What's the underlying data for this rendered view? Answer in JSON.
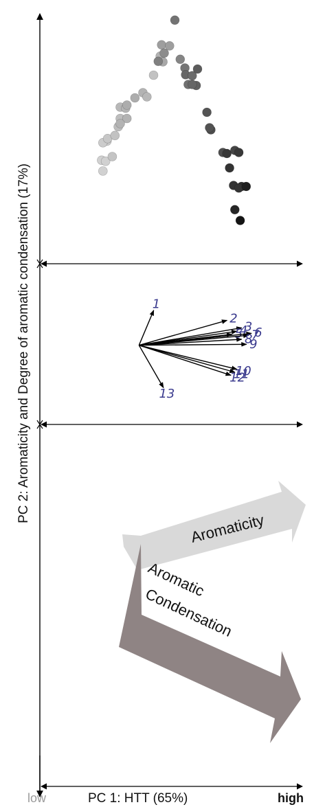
{
  "labels": {
    "y_axis": "PC 2: Aromaticity and Degree of aromatic condensation (17%)",
    "x_axis": "PC 1: HTT (65%)",
    "x_low": "low",
    "x_high": "high",
    "arrow_aromaticity": "Aromaticity",
    "arrow_condensation_line1": "Aromatic",
    "arrow_condensation_line2": "Condensation"
  },
  "colors": {
    "axis": "#000000",
    "loading_label": "#3b3b8e",
    "aromaticity_arrow": "#d9d9d9",
    "condensation_arrow": "#8f8484",
    "low_label": "#9a9a9a"
  },
  "chart_data": [
    {
      "type": "scatter",
      "title": "",
      "note": "score plot; point shade darkens with increasing HTT",
      "points": [
        {
          "x": -0.78,
          "y": 0.04,
          "shade": 0.82
        },
        {
          "x": -0.8,
          "y": 0.25,
          "shade": 0.82
        },
        {
          "x": -0.74,
          "y": 0.23,
          "shade": 0.82
        },
        {
          "x": -0.72,
          "y": 0.62,
          "shade": 0.8
        },
        {
          "x": -0.78,
          "y": 0.59,
          "shade": 0.8
        },
        {
          "x": -0.71,
          "y": 0.67,
          "shade": 0.78
        },
        {
          "x": -0.64,
          "y": 0.32,
          "shade": 0.77
        },
        {
          "x": -0.6,
          "y": 0.73,
          "shade": 0.76
        },
        {
          "x": -0.55,
          "y": 0.9,
          "shade": 0.74
        },
        {
          "x": -0.52,
          "y": 1.06,
          "shade": 0.74
        },
        {
          "x": -0.52,
          "y": 1.28,
          "shade": 0.72
        },
        {
          "x": -0.42,
          "y": 1.06,
          "shade": 0.7
        },
        {
          "x": -0.44,
          "y": 1.26,
          "shade": 0.71
        },
        {
          "x": -0.52,
          "y": 0.96,
          "shade": 0.7
        },
        {
          "x": -0.42,
          "y": 1.32,
          "shade": 0.68
        },
        {
          "x": -0.3,
          "y": 1.46,
          "shade": 0.68
        },
        {
          "x": -0.18,
          "y": 1.56,
          "shade": 0.7
        },
        {
          "x": -0.12,
          "y": 1.48,
          "shade": 0.72
        },
        {
          "x": -0.02,
          "y": 1.9,
          "shade": 0.76
        },
        {
          "x": 0.08,
          "y": 2.27,
          "shade": 0.7
        },
        {
          "x": 0.12,
          "y": 2.16,
          "shade": 0.66
        },
        {
          "x": 0.1,
          "y": 2.49,
          "shade": 0.62
        },
        {
          "x": 0.22,
          "y": 2.47,
          "shade": 0.62
        },
        {
          "x": 0.14,
          "y": 2.33,
          "shade": 0.55
        },
        {
          "x": 0.05,
          "y": 2.17,
          "shade": 0.5
        },
        {
          "x": 0.3,
          "y": 2.97,
          "shade": 0.45
        },
        {
          "x": 0.38,
          "y": 2.21,
          "shade": 0.52
        },
        {
          "x": 0.45,
          "y": 2.04,
          "shade": 0.46
        },
        {
          "x": 0.5,
          "y": 1.72,
          "shade": 0.44
        },
        {
          "x": 0.46,
          "y": 1.91,
          "shade": 0.4
        },
        {
          "x": 0.56,
          "y": 1.89,
          "shade": 0.42
        },
        {
          "x": 0.62,
          "y": 1.7,
          "shade": 0.38
        },
        {
          "x": 0.56,
          "y": 1.72,
          "shade": 0.4
        },
        {
          "x": 0.64,
          "y": 2.02,
          "shade": 0.36
        },
        {
          "x": 0.78,
          "y": 1.18,
          "shade": 0.33
        },
        {
          "x": 0.84,
          "y": 0.84,
          "shade": 0.3
        },
        {
          "x": 0.82,
          "y": 0.88,
          "shade": 0.32
        },
        {
          "x": 1.02,
          "y": 0.4,
          "shade": 0.3
        },
        {
          "x": 1.08,
          "y": 0.38,
          "shade": 0.22
        },
        {
          "x": 1.2,
          "y": 0.44,
          "shade": 0.27
        },
        {
          "x": 1.26,
          "y": 0.4,
          "shade": 0.22
        },
        {
          "x": 1.12,
          "y": 0.1,
          "shade": 0.2
        },
        {
          "x": 1.18,
          "y": -0.24,
          "shade": 0.2
        },
        {
          "x": 1.3,
          "y": -0.26,
          "shade": 0.18
        },
        {
          "x": 1.26,
          "y": -0.29,
          "shade": 0.2
        },
        {
          "x": 1.37,
          "y": -0.26,
          "shade": 0.12
        },
        {
          "x": 1.2,
          "y": -0.71,
          "shade": 0.15
        },
        {
          "x": 1.28,
          "y": -0.92,
          "shade": 0.08
        }
      ],
      "xlim": [
        -1.5,
        1.8
      ],
      "ylim": [
        -1.6,
        3.2
      ]
    },
    {
      "type": "vector",
      "title": "",
      "note": "loading plot; arrows start at origin",
      "loadings": [
        {
          "label": "1",
          "x": 0.15,
          "y": 0.7
        },
        {
          "label": "2",
          "x": 0.9,
          "y": 0.5
        },
        {
          "label": "3",
          "x": 1.05,
          "y": 0.35
        },
        {
          "label": "4",
          "x": 1.0,
          "y": 0.28
        },
        {
          "label": "5",
          "x": 0.95,
          "y": 0.22
        },
        {
          "label": "6",
          "x": 1.15,
          "y": 0.24
        },
        {
          "label": "7",
          "x": 1.12,
          "y": 0.2
        },
        {
          "label": "8",
          "x": 1.05,
          "y": 0.12
        },
        {
          "label": "9",
          "x": 1.1,
          "y": 0.02
        },
        {
          "label": "10",
          "x": 1.0,
          "y": -0.48
        },
        {
          "label": "11",
          "x": 0.98,
          "y": -0.54
        },
        {
          "label": "12",
          "x": 0.94,
          "y": -0.6
        },
        {
          "label": "13",
          "x": 0.25,
          "y": -0.85
        }
      ],
      "xlim": [
        -1.0,
        1.6
      ],
      "ylim": [
        -1.2,
        1.0
      ]
    }
  ]
}
